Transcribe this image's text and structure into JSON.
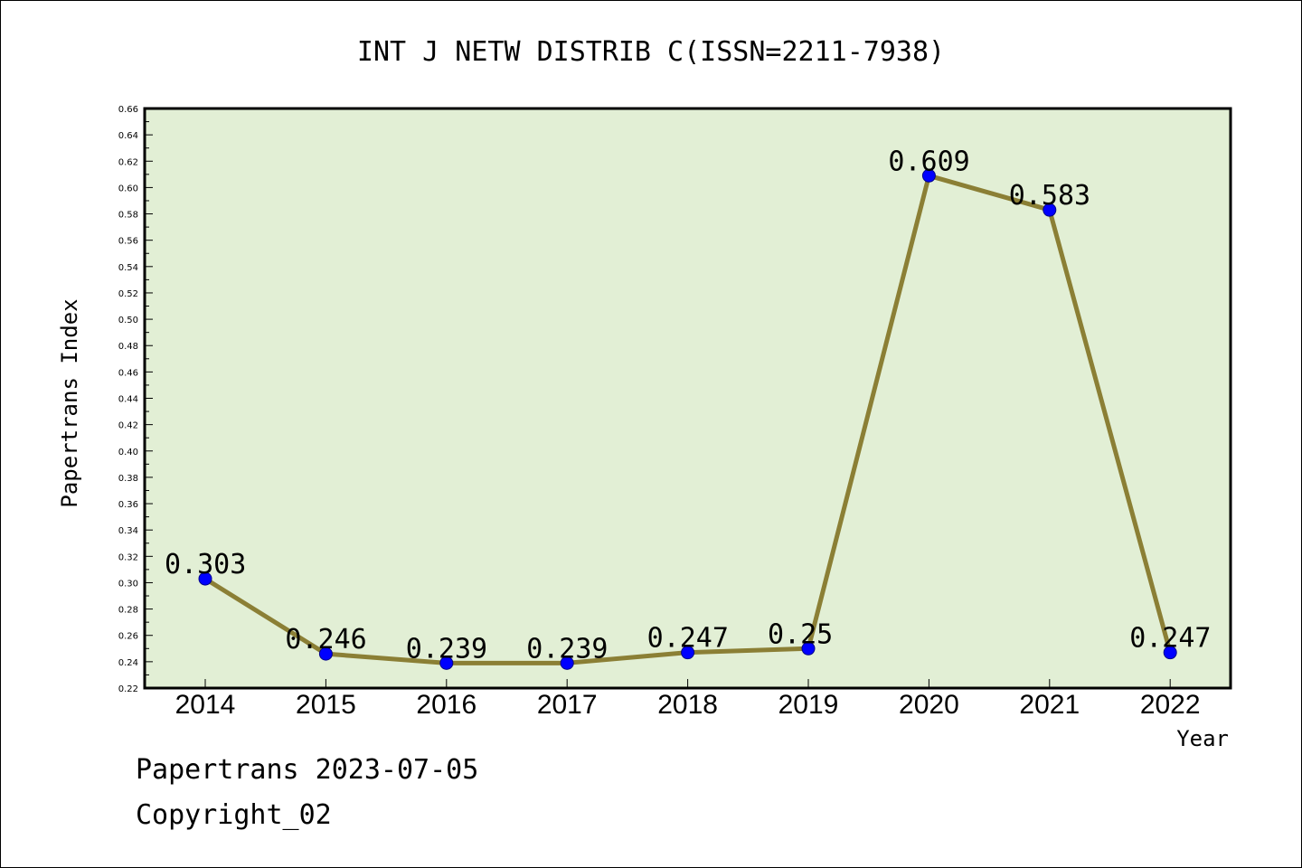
{
  "footer": {
    "line1": "Papertrans 2023-07-05",
    "line2": "Copyright_02"
  },
  "colors": {
    "plot_background": "#e2efd5",
    "line": "#8b7f35",
    "marker": "#0000ff",
    "marker_edge": "#00008b"
  },
  "chart_data": {
    "type": "line",
    "title": "INT J NETW DISTRIB C(ISSN=2211-7938)",
    "xlabel": "Year",
    "ylabel": "Papertrans Index",
    "categories": [
      "2014",
      "2015",
      "2016",
      "2017",
      "2018",
      "2019",
      "2020",
      "2021",
      "2022"
    ],
    "values": [
      0.303,
      0.246,
      0.239,
      0.239,
      0.247,
      0.25,
      0.609,
      0.583,
      0.247
    ],
    "data_labels": [
      "0.303",
      "0.246",
      "0.239",
      "0.239",
      "0.247",
      "0.25",
      "0.609",
      "0.583",
      "0.247"
    ],
    "ylim": [
      0.22,
      0.66
    ],
    "yticks": [
      "0.22",
      "0.24",
      "0.26",
      "0.28",
      "0.30",
      "0.32",
      "0.34",
      "0.36",
      "0.38",
      "0.40",
      "0.42",
      "0.44",
      "0.46",
      "0.48",
      "0.50",
      "0.52",
      "0.54",
      "0.56",
      "0.58",
      "0.60",
      "0.62",
      "0.64",
      "0.66"
    ],
    "grid": false,
    "legend": "none"
  }
}
